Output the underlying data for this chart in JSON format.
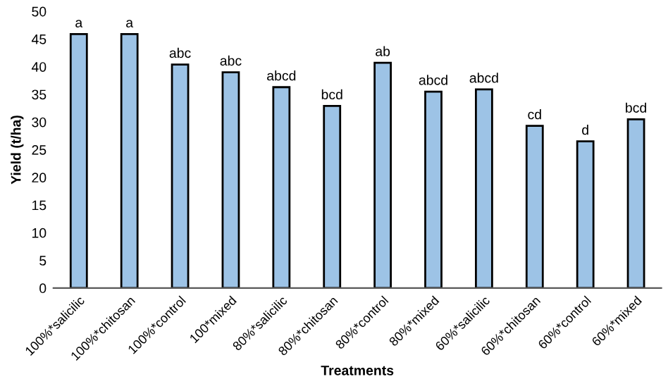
{
  "chart_data": {
    "type": "bar",
    "xlabel": "Treatments",
    "ylabel": "Yield (t/ha)",
    "categories": [
      "100%*salicilic",
      "100%*chitosan",
      "100%*control",
      "100*mixed",
      "80%*salicilic",
      "80%*chitosan",
      "80%*control",
      "80%*mixed",
      "60%*salicilic",
      "60%*chitosan",
      "60%*control",
      "60%*mixed"
    ],
    "values": [
      45.9,
      45.9,
      40.4,
      39.0,
      36.3,
      32.9,
      40.7,
      35.5,
      35.9,
      29.3,
      26.5,
      30.5
    ],
    "value_labels": [
      "a",
      "a",
      "abc",
      "abc",
      "abcd",
      "bcd",
      "ab",
      "abcd",
      "abcd",
      "cd",
      "d",
      "bcd"
    ],
    "color": "#9dc3e6",
    "ylim": [
      0,
      50
    ],
    "yticks": [
      0,
      5,
      10,
      15,
      20,
      25,
      30,
      35,
      40,
      45,
      50
    ],
    "grid": false
  }
}
